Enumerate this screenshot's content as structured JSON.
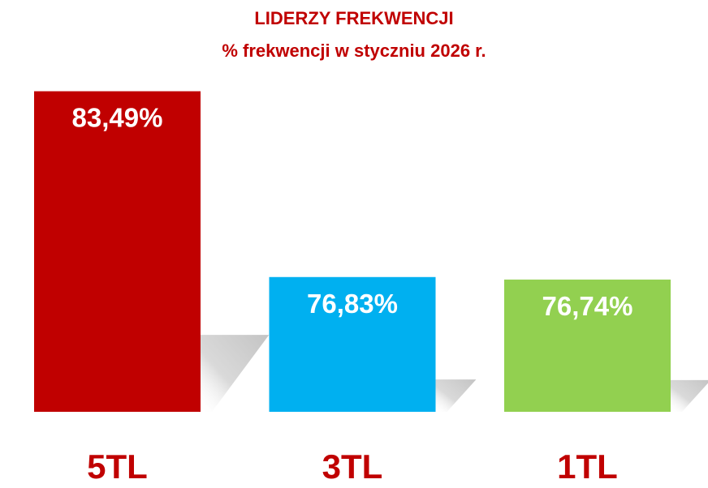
{
  "chart_data": {
    "type": "bar",
    "title": "LIDERZY FREKWENCJI",
    "subtitle": "% frekwencji w styczniu 2026 r.",
    "categories": [
      "5TL",
      "3TL",
      "1TL"
    ],
    "values": [
      83.49,
      76.83,
      76.74
    ],
    "value_labels": [
      "83,49%",
      "76,83%",
      "76,74%"
    ],
    "colors": [
      "#C00000",
      "#00B0F0",
      "#92D050"
    ],
    "title_color": "#C00000",
    "category_label_color": "#C00000",
    "xlabel": "",
    "ylabel": "",
    "ylim": [
      72,
      84
    ],
    "grid": false,
    "axes_visible": false,
    "legend": "none"
  }
}
